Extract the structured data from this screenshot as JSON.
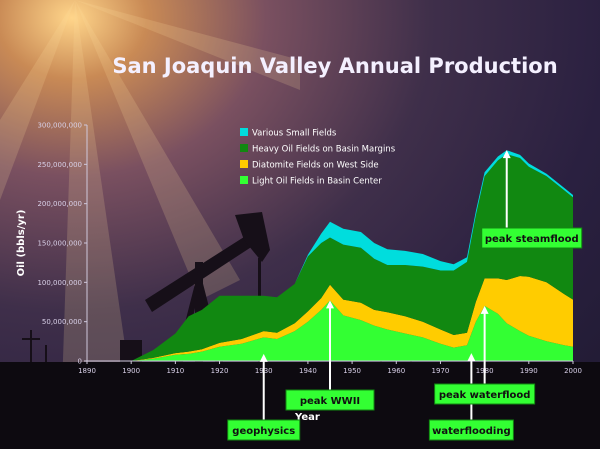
{
  "chart_data": {
    "type": "area",
    "title": "San Joaquin Valley Annual Production",
    "xlabel": "Year",
    "ylabel": "Oil (bbls/yr)",
    "xlim": [
      1890,
      2000
    ],
    "ylim": [
      0,
      300000000
    ],
    "x_ticks": [
      "1890",
      "1900",
      "1910",
      "1920",
      "1930",
      "1940",
      "1950",
      "1960",
      "1970",
      "1980",
      "1990",
      "2000"
    ],
    "y_ticks": [
      "0",
      "50,000,000",
      "100,000,000",
      "150,000,000",
      "200,000,000",
      "250,000,000",
      "300,000,000"
    ],
    "legend_position": "top-center",
    "x": [
      1900,
      1905,
      1910,
      1913,
      1916,
      1920,
      1925,
      1930,
      1933,
      1937,
      1940,
      1943,
      1945,
      1948,
      1952,
      1955,
      1958,
      1962,
      1966,
      1970,
      1973,
      1976,
      1978,
      1980,
      1983,
      1985,
      1988,
      1990,
      1994,
      1998,
      2000
    ],
    "series": [
      {
        "name": "Light Oil Fields in Basin Center",
        "color": "#33ff33",
        "values": [
          0,
          3000000,
          8000000,
          9000000,
          12000000,
          18000000,
          22000000,
          30000000,
          28000000,
          38000000,
          50000000,
          65000000,
          77000000,
          58000000,
          52000000,
          45000000,
          40000000,
          35000000,
          30000000,
          22000000,
          17000000,
          20000000,
          50000000,
          70000000,
          60000000,
          48000000,
          38000000,
          32000000,
          25000000,
          20000000,
          18000000
        ]
      },
      {
        "name": "Diatomite Fields on West Side",
        "color": "#ffcc00",
        "values": [
          0,
          1000000,
          2000000,
          3000000,
          3000000,
          5000000,
          6000000,
          8000000,
          8000000,
          10000000,
          13000000,
          15000000,
          20000000,
          20000000,
          22000000,
          20000000,
          22000000,
          22000000,
          20000000,
          18000000,
          16000000,
          16000000,
          25000000,
          35000000,
          45000000,
          55000000,
          70000000,
          75000000,
          75000000,
          65000000,
          60000000
        ]
      },
      {
        "name": "Heavy Oil Fields on Basin Margins",
        "color": "#118811",
        "values": [
          0,
          10000000,
          25000000,
          45000000,
          50000000,
          60000000,
          55000000,
          45000000,
          45000000,
          50000000,
          70000000,
          70000000,
          60000000,
          70000000,
          70000000,
          65000000,
          60000000,
          65000000,
          70000000,
          75000000,
          82000000,
          90000000,
          110000000,
          130000000,
          150000000,
          160000000,
          150000000,
          140000000,
          135000000,
          132000000,
          130000000
        ]
      },
      {
        "name": "Various Small Fields",
        "color": "#00dddd",
        "values": [
          0,
          0,
          0,
          0,
          0,
          0,
          0,
          0,
          0,
          0,
          2000000,
          12000000,
          20000000,
          20000000,
          20000000,
          20000000,
          20000000,
          18000000,
          16000000,
          12000000,
          8000000,
          6000000,
          5000000,
          5000000,
          5000000,
          5000000,
          4000000,
          4000000,
          3000000,
          3000000,
          3000000
        ]
      }
    ],
    "annotations": [
      {
        "label": "geophysics",
        "year": 1930,
        "value": 9000000
      },
      {
        "label": "peak WWII",
        "year": 1945,
        "value": 77000000
      },
      {
        "label": "waterflooding",
        "year": 1977,
        "value": 10000000
      },
      {
        "label": "peak waterflood",
        "year": 1980,
        "value": 70000000
      },
      {
        "label": "peak steamflood",
        "year": 1985,
        "value": 268000000
      }
    ]
  }
}
